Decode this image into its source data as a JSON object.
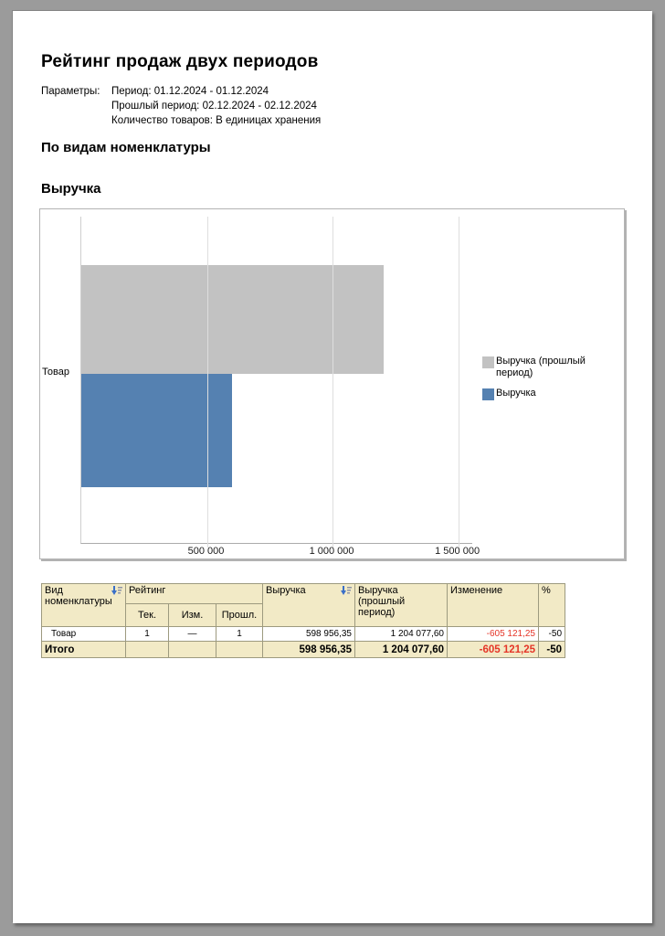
{
  "page": {
    "title": "Рейтинг продаж двух периодов",
    "params_label": "Параметры:",
    "params": [
      "Период: 01.12.2024 - 01.12.2024",
      "Прошлый период: 02.12.2024 - 02.12.2024",
      "Количество товаров: В единицах хранения"
    ],
    "section_title": "По видам номенклатуры",
    "chart_title": "Выручка"
  },
  "chart_data": {
    "type": "bar",
    "orientation": "horizontal",
    "title": "Выручка",
    "categories": [
      "Товар"
    ],
    "series": [
      {
        "name": "Выручка (прошлый период)",
        "values": [
          1204077.6
        ],
        "color": "#c2c2c2"
      },
      {
        "name": "Выручка",
        "values": [
          598956.35
        ],
        "color": "#5581b1"
      }
    ],
    "xlim": [
      0,
      1556000
    ],
    "xticks": [
      500000,
      1000000,
      1500000
    ],
    "xtick_labels": [
      "500 000",
      "1 000 000",
      "1 500 000"
    ],
    "legend_position": "right",
    "grid": true
  },
  "table": {
    "col1_header": "Вид номенклатуры",
    "group_header": "Рейтинг",
    "sub_headers": [
      "Тек.",
      "Изм.",
      "Прошл."
    ],
    "revenue_header": "Выручка",
    "revenue_prev_header": "Выручка (прошлый период)",
    "change_header": "Изменение",
    "percent_header": "%",
    "row": {
      "name": "Товар",
      "rank_cur": "1",
      "rank_change": "—",
      "rank_prev": "1",
      "revenue": "598 956,35",
      "revenue_prev": "1 204 077,60",
      "change": "-605 121,25",
      "percent": "-50"
    },
    "total": {
      "label": "Итого",
      "revenue": "598 956,35",
      "revenue_prev": "1 204 077,60",
      "change": "-605 121,25",
      "percent": "-50"
    }
  },
  "colors": {
    "bar_prev": "#c2c2c2",
    "bar_current": "#5581b1",
    "table_header_bg": "#f2eac6",
    "negative_value": "#e53528",
    "sort_arrow": "#3a6fc8",
    "page_background": "#9b9b9b"
  }
}
